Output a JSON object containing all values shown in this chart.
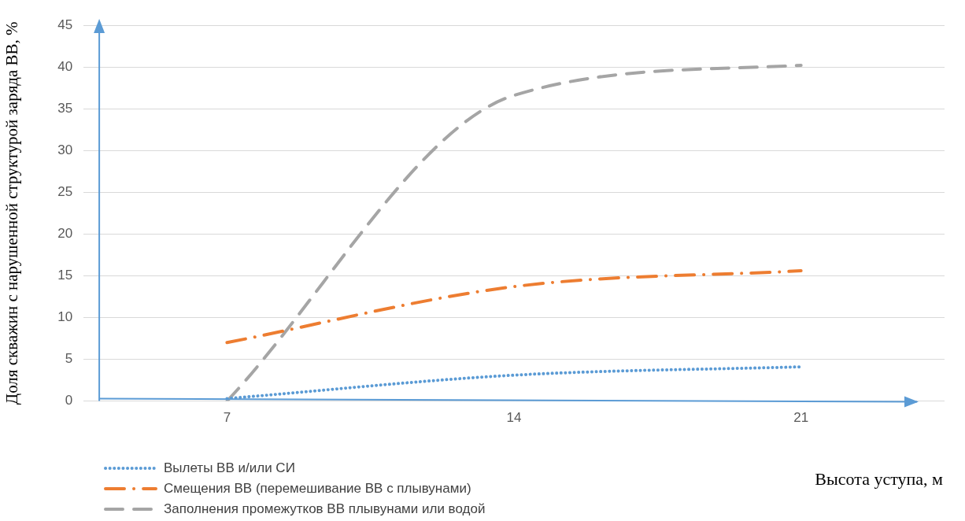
{
  "chart_data": {
    "type": "line",
    "xlabel": "Высота уступа, м",
    "ylabel": "Доля скважин с нарушенной структурой заряда ВВ, %",
    "categories": [
      "7",
      "14",
      "21"
    ],
    "series": [
      {
        "name": "Вылеты ВВ и/или СИ",
        "color": "#5b9bd5",
        "line_style": "dotted",
        "values": [
          0.3,
          3.1,
          4.1
        ]
      },
      {
        "name": "Смещения ВВ (перемешивание ВВ с плывунами)",
        "color": "#ed7d31",
        "line_style": "dashdot",
        "values": [
          7,
          13.7,
          15.6
        ]
      },
      {
        "name": "Заполнения промежутков ВВ плывунами или водой",
        "color": "#a5a5a5",
        "line_style": "dashed",
        "values": [
          0,
          36.6,
          40.2
        ]
      }
    ],
    "ylim": [
      0,
      45
    ],
    "yticks": [
      0,
      5,
      10,
      15,
      20,
      25,
      30,
      35,
      40,
      45
    ],
    "grid": "y",
    "legend": "bottom left",
    "marker": "none"
  }
}
